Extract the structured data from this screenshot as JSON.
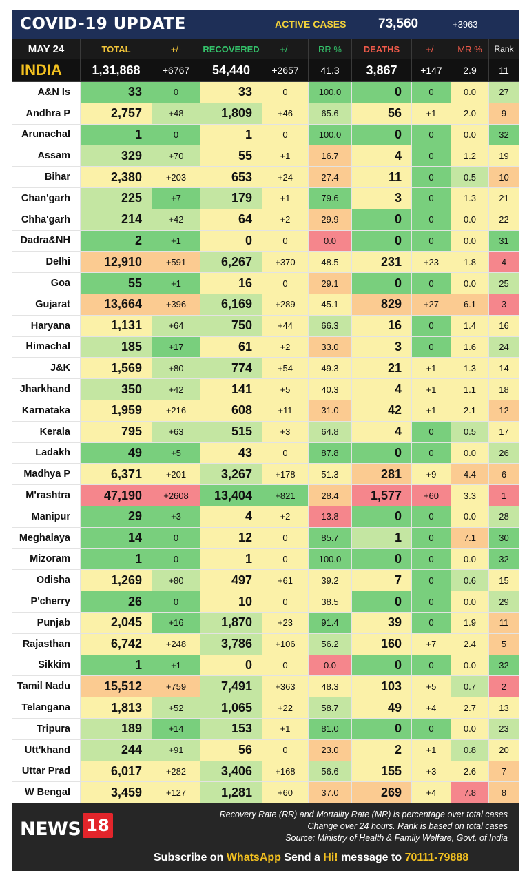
{
  "header": {
    "title": "COVID-19 UPDATE",
    "active_label": "ACTIVE CASES",
    "active_value": "73,560",
    "active_delta": "+3963"
  },
  "columns": {
    "date": "MAY 24",
    "total": "TOTAL",
    "pm1": "+/-",
    "recovered": "RECOVERED",
    "pm2": "+/-",
    "rr": "RR %",
    "deaths": "DEATHS",
    "pm3": "+/-",
    "mr": "MR %",
    "rank": "Rank"
  },
  "colors": {
    "green": "#79cf7d",
    "lightgreen": "#c4e6a2",
    "yellow": "#fbf1a8",
    "orange": "#fbcb91",
    "red": "#f5868c",
    "india_row": "#111111",
    "title_bar": "#1e2f57"
  },
  "india": {
    "name": "INDIA",
    "total": "1,31,868",
    "total_delta": "+6767",
    "recovered": "54,440",
    "recovered_delta": "+2657",
    "rr": "41.3",
    "deaths": "3,867",
    "deaths_delta": "+147",
    "mr": "2.9",
    "rank": "11"
  },
  "states": [
    {
      "name": "A&N Is",
      "total": "33",
      "td": "0",
      "rec": "33",
      "rd": "0",
      "rr": "100.0",
      "deaths": "0",
      "dd": "0",
      "mr": "0.0",
      "rank": "27",
      "c": [
        "g",
        "g",
        "y",
        "y",
        "g",
        "g",
        "g",
        "y",
        "lg"
      ]
    },
    {
      "name": "Andhra P",
      "total": "2,757",
      "td": "+48",
      "rec": "1,809",
      "rd": "+46",
      "rr": "65.6",
      "deaths": "56",
      "dd": "+1",
      "mr": "2.0",
      "rank": "9",
      "c": [
        "y",
        "lg",
        "lg",
        "y",
        "lg",
        "y",
        "y",
        "y",
        "o"
      ]
    },
    {
      "name": "Arunachal",
      "total": "1",
      "td": "0",
      "rec": "1",
      "rd": "0",
      "rr": "100.0",
      "deaths": "0",
      "dd": "0",
      "mr": "0.0",
      "rank": "32",
      "c": [
        "g",
        "g",
        "y",
        "y",
        "g",
        "g",
        "g",
        "y",
        "g"
      ]
    },
    {
      "name": "Assam",
      "total": "329",
      "td": "+70",
      "rec": "55",
      "rd": "+1",
      "rr": "16.7",
      "deaths": "4",
      "dd": "0",
      "mr": "1.2",
      "rank": "19",
      "c": [
        "lg",
        "lg",
        "y",
        "y",
        "o",
        "y",
        "g",
        "y",
        "y"
      ]
    },
    {
      "name": "Bihar",
      "total": "2,380",
      "td": "+203",
      "rec": "653",
      "rd": "+24",
      "rr": "27.4",
      "deaths": "11",
      "dd": "0",
      "mr": "0.5",
      "rank": "10",
      "c": [
        "y",
        "y",
        "y",
        "y",
        "o",
        "y",
        "g",
        "lg",
        "o"
      ]
    },
    {
      "name": "Chan'garh",
      "total": "225",
      "td": "+7",
      "rec": "179",
      "rd": "+1",
      "rr": "79.6",
      "deaths": "3",
      "dd": "0",
      "mr": "1.3",
      "rank": "21",
      "c": [
        "lg",
        "g",
        "lg",
        "y",
        "g",
        "y",
        "g",
        "y",
        "y"
      ]
    },
    {
      "name": "Chha'garh",
      "total": "214",
      "td": "+42",
      "rec": "64",
      "rd": "+2",
      "rr": "29.9",
      "deaths": "0",
      "dd": "0",
      "mr": "0.0",
      "rank": "22",
      "c": [
        "lg",
        "lg",
        "y",
        "y",
        "o",
        "g",
        "g",
        "y",
        "y"
      ]
    },
    {
      "name": "Dadra&NH",
      "total": "2",
      "td": "+1",
      "rec": "0",
      "rd": "0",
      "rr": "0.0",
      "deaths": "0",
      "dd": "0",
      "mr": "0.0",
      "rank": "31",
      "c": [
        "g",
        "g",
        "y",
        "y",
        "r",
        "g",
        "g",
        "y",
        "g"
      ]
    },
    {
      "name": "Delhi",
      "total": "12,910",
      "td": "+591",
      "rec": "6,267",
      "rd": "+370",
      "rr": "48.5",
      "deaths": "231",
      "dd": "+23",
      "mr": "1.8",
      "rank": "4",
      "c": [
        "o",
        "o",
        "lg",
        "y",
        "y",
        "y",
        "y",
        "y",
        "r"
      ]
    },
    {
      "name": "Goa",
      "total": "55",
      "td": "+1",
      "rec": "16",
      "rd": "0",
      "rr": "29.1",
      "deaths": "0",
      "dd": "0",
      "mr": "0.0",
      "rank": "25",
      "c": [
        "g",
        "g",
        "y",
        "y",
        "o",
        "g",
        "g",
        "y",
        "lg"
      ]
    },
    {
      "name": "Gujarat",
      "total": "13,664",
      "td": "+396",
      "rec": "6,169",
      "rd": "+289",
      "rr": "45.1",
      "deaths": "829",
      "dd": "+27",
      "mr": "6.1",
      "rank": "3",
      "c": [
        "o",
        "o",
        "lg",
        "y",
        "y",
        "o",
        "o",
        "o",
        "r"
      ]
    },
    {
      "name": "Haryana",
      "total": "1,131",
      "td": "+64",
      "rec": "750",
      "rd": "+44",
      "rr": "66.3",
      "deaths": "16",
      "dd": "0",
      "mr": "1.4",
      "rank": "16",
      "c": [
        "y",
        "lg",
        "lg",
        "y",
        "lg",
        "y",
        "g",
        "y",
        "y"
      ]
    },
    {
      "name": "Himachal",
      "total": "185",
      "td": "+17",
      "rec": "61",
      "rd": "+2",
      "rr": "33.0",
      "deaths": "3",
      "dd": "0",
      "mr": "1.6",
      "rank": "24",
      "c": [
        "lg",
        "g",
        "y",
        "y",
        "o",
        "y",
        "g",
        "y",
        "lg"
      ]
    },
    {
      "name": "J&K",
      "total": "1,569",
      "td": "+80",
      "rec": "774",
      "rd": "+54",
      "rr": "49.3",
      "deaths": "21",
      "dd": "+1",
      "mr": "1.3",
      "rank": "14",
      "c": [
        "y",
        "lg",
        "lg",
        "y",
        "y",
        "y",
        "y",
        "y",
        "y"
      ]
    },
    {
      "name": "Jharkhand",
      "total": "350",
      "td": "+42",
      "rec": "141",
      "rd": "+5",
      "rr": "40.3",
      "deaths": "4",
      "dd": "+1",
      "mr": "1.1",
      "rank": "18",
      "c": [
        "lg",
        "lg",
        "y",
        "y",
        "y",
        "y",
        "y",
        "y",
        "y"
      ]
    },
    {
      "name": "Karnataka",
      "total": "1,959",
      "td": "+216",
      "rec": "608",
      "rd": "+11",
      "rr": "31.0",
      "deaths": "42",
      "dd": "+1",
      "mr": "2.1",
      "rank": "12",
      "c": [
        "y",
        "y",
        "y",
        "y",
        "o",
        "y",
        "y",
        "y",
        "o"
      ]
    },
    {
      "name": "Kerala",
      "total": "795",
      "td": "+63",
      "rec": "515",
      "rd": "+3",
      "rr": "64.8",
      "deaths": "4",
      "dd": "0",
      "mr": "0.5",
      "rank": "17",
      "c": [
        "y",
        "lg",
        "lg",
        "y",
        "lg",
        "y",
        "g",
        "lg",
        "y"
      ]
    },
    {
      "name": "Ladakh",
      "total": "49",
      "td": "+5",
      "rec": "43",
      "rd": "0",
      "rr": "87.8",
      "deaths": "0",
      "dd": "0",
      "mr": "0.0",
      "rank": "26",
      "c": [
        "g",
        "g",
        "y",
        "y",
        "g",
        "g",
        "g",
        "y",
        "lg"
      ]
    },
    {
      "name": "Madhya P",
      "total": "6,371",
      "td": "+201",
      "rec": "3,267",
      "rd": "+178",
      "rr": "51.3",
      "deaths": "281",
      "dd": "+9",
      "mr": "4.4",
      "rank": "6",
      "c": [
        "y",
        "y",
        "lg",
        "y",
        "y",
        "o",
        "y",
        "o",
        "o"
      ]
    },
    {
      "name": "M'rashtra",
      "total": "47,190",
      "td": "+2608",
      "rec": "13,404",
      "rd": "+821",
      "rr": "28.4",
      "deaths": "1,577",
      "dd": "+60",
      "mr": "3.3",
      "rank": "1",
      "c": [
        "r",
        "r",
        "g",
        "g",
        "o",
        "r",
        "r",
        "y",
        "r"
      ]
    },
    {
      "name": "Manipur",
      "total": "29",
      "td": "+3",
      "rec": "4",
      "rd": "+2",
      "rr": "13.8",
      "deaths": "0",
      "dd": "0",
      "mr": "0.0",
      "rank": "28",
      "c": [
        "g",
        "g",
        "y",
        "y",
        "r",
        "g",
        "g",
        "y",
        "lg"
      ]
    },
    {
      "name": "Meghalaya",
      "total": "14",
      "td": "0",
      "rec": "12",
      "rd": "0",
      "rr": "85.7",
      "deaths": "1",
      "dd": "0",
      "mr": "7.1",
      "rank": "30",
      "c": [
        "g",
        "g",
        "y",
        "y",
        "g",
        "lg",
        "g",
        "o",
        "g"
      ]
    },
    {
      "name": "Mizoram",
      "total": "1",
      "td": "0",
      "rec": "1",
      "rd": "0",
      "rr": "100.0",
      "deaths": "0",
      "dd": "0",
      "mr": "0.0",
      "rank": "32",
      "c": [
        "g",
        "g",
        "y",
        "y",
        "g",
        "g",
        "g",
        "y",
        "g"
      ]
    },
    {
      "name": "Odisha",
      "total": "1,269",
      "td": "+80",
      "rec": "497",
      "rd": "+61",
      "rr": "39.2",
      "deaths": "7",
      "dd": "0",
      "mr": "0.6",
      "rank": "15",
      "c": [
        "y",
        "lg",
        "y",
        "y",
        "y",
        "y",
        "g",
        "lg",
        "y"
      ]
    },
    {
      "name": "P'cherry",
      "total": "26",
      "td": "0",
      "rec": "10",
      "rd": "0",
      "rr": "38.5",
      "deaths": "0",
      "dd": "0",
      "mr": "0.0",
      "rank": "29",
      "c": [
        "g",
        "g",
        "y",
        "y",
        "y",
        "g",
        "g",
        "y",
        "lg"
      ]
    },
    {
      "name": "Punjab",
      "total": "2,045",
      "td": "+16",
      "rec": "1,870",
      "rd": "+23",
      "rr": "91.4",
      "deaths": "39",
      "dd": "0",
      "mr": "1.9",
      "rank": "11",
      "c": [
        "y",
        "g",
        "lg",
        "y",
        "g",
        "y",
        "g",
        "y",
        "o"
      ]
    },
    {
      "name": "Rajasthan",
      "total": "6,742",
      "td": "+248",
      "rec": "3,786",
      "rd": "+106",
      "rr": "56.2",
      "deaths": "160",
      "dd": "+7",
      "mr": "2.4",
      "rank": "5",
      "c": [
        "y",
        "y",
        "lg",
        "y",
        "lg",
        "y",
        "y",
        "y",
        "o"
      ]
    },
    {
      "name": "Sikkim",
      "total": "1",
      "td": "+1",
      "rec": "0",
      "rd": "0",
      "rr": "0.0",
      "deaths": "0",
      "dd": "0",
      "mr": "0.0",
      "rank": "32",
      "c": [
        "g",
        "g",
        "y",
        "y",
        "r",
        "g",
        "g",
        "y",
        "g"
      ]
    },
    {
      "name": "Tamil Nadu",
      "total": "15,512",
      "td": "+759",
      "rec": "7,491",
      "rd": "+363",
      "rr": "48.3",
      "deaths": "103",
      "dd": "+5",
      "mr": "0.7",
      "rank": "2",
      "c": [
        "o",
        "o",
        "lg",
        "y",
        "y",
        "y",
        "y",
        "lg",
        "r"
      ]
    },
    {
      "name": "Telangana",
      "total": "1,813",
      "td": "+52",
      "rec": "1,065",
      "rd": "+22",
      "rr": "58.7",
      "deaths": "49",
      "dd": "+4",
      "mr": "2.7",
      "rank": "13",
      "c": [
        "y",
        "lg",
        "lg",
        "y",
        "lg",
        "y",
        "y",
        "y",
        "y"
      ]
    },
    {
      "name": "Tripura",
      "total": "189",
      "td": "+14",
      "rec": "153",
      "rd": "+1",
      "rr": "81.0",
      "deaths": "0",
      "dd": "0",
      "mr": "0.0",
      "rank": "23",
      "c": [
        "lg",
        "g",
        "lg",
        "y",
        "g",
        "g",
        "g",
        "y",
        "lg"
      ]
    },
    {
      "name": "Utt'khand",
      "total": "244",
      "td": "+91",
      "rec": "56",
      "rd": "0",
      "rr": "23.0",
      "deaths": "2",
      "dd": "+1",
      "mr": "0.8",
      "rank": "20",
      "c": [
        "lg",
        "lg",
        "y",
        "y",
        "o",
        "y",
        "y",
        "lg",
        "y"
      ]
    },
    {
      "name": "Uttar Prad",
      "total": "6,017",
      "td": "+282",
      "rec": "3,406",
      "rd": "+168",
      "rr": "56.6",
      "deaths": "155",
      "dd": "+3",
      "mr": "2.6",
      "rank": "7",
      "c": [
        "y",
        "y",
        "lg",
        "y",
        "lg",
        "y",
        "y",
        "y",
        "o"
      ]
    },
    {
      "name": "W Bengal",
      "total": "3,459",
      "td": "+127",
      "rec": "1,281",
      "rd": "+60",
      "rr": "37.0",
      "deaths": "269",
      "dd": "+4",
      "mr": "7.8",
      "rank": "8",
      "c": [
        "y",
        "y",
        "lg",
        "y",
        "o",
        "o",
        "y",
        "r",
        "o"
      ]
    }
  ],
  "footer": {
    "note1": "Recovery Rate (RR) and Mortality Rate (MR) is percentage over total cases",
    "note2": "Change over 24 hours. Rank is based on total cases",
    "note3": "Source: Ministry of Health & Family Welfare, Govt. of India",
    "logo_text": "NEWS",
    "logo_number": "18",
    "sub_prefix": "Subscribe on",
    "sub_app": "WhatsApp",
    "sub_mid": "Send a",
    "sub_word": "Hi!",
    "sub_msg": "message to",
    "sub_number": "70111-79888"
  }
}
